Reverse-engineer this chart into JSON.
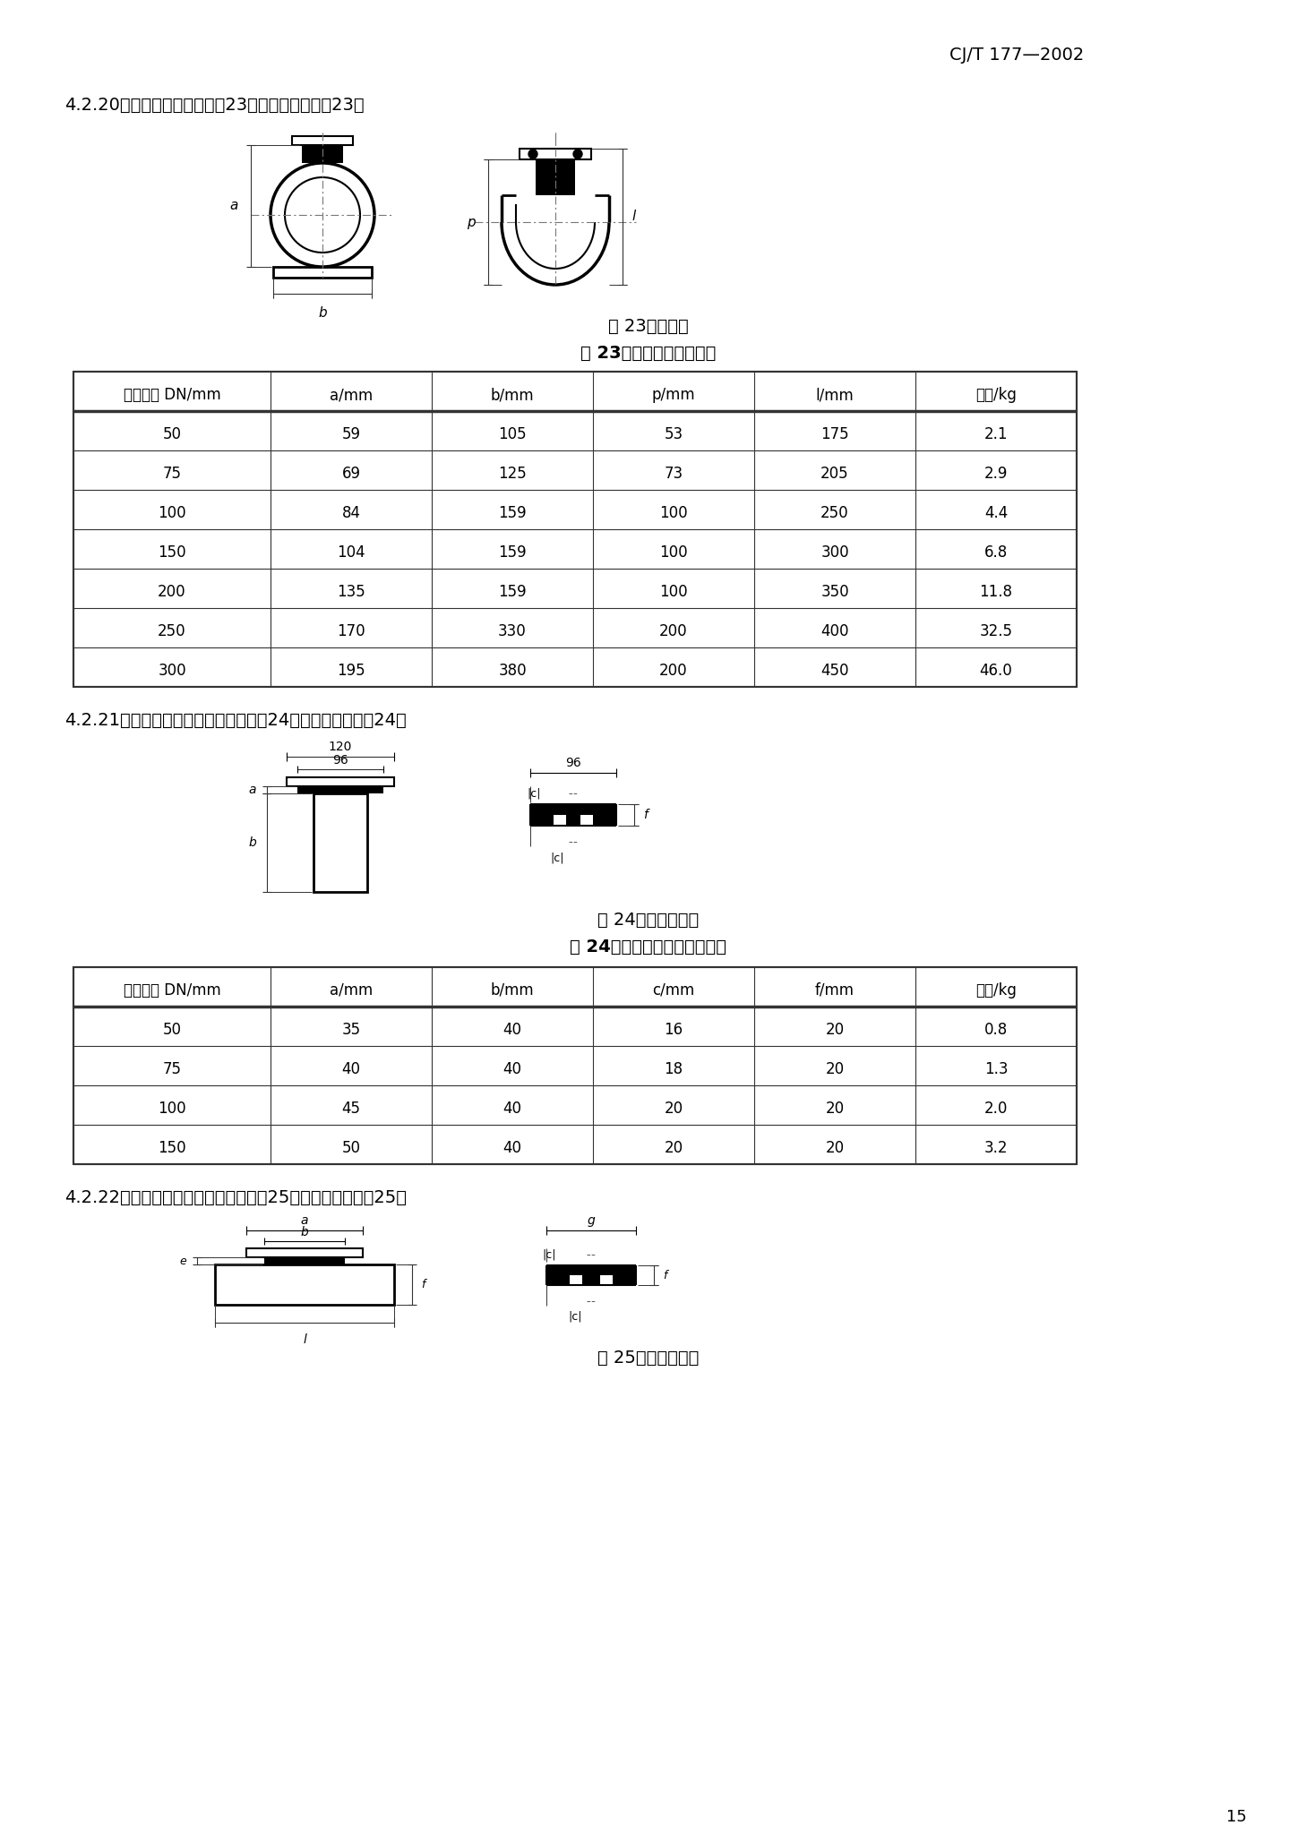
{
  "header": "CJ/T 177—2002",
  "section_420": "4.2.20　检查口；检查口见图23，尺寸和质量见表23。",
  "fig23_caption": "图 23　检查口",
  "table23_title": "表 23　检查口尺寸和质量",
  "table23_headers": [
    "公称直径 DN/mm",
    "a/mm",
    "b/mm",
    "p/mm",
    "l/mm",
    "质量/kg"
  ],
  "table23_data": [
    [
      "50",
      "59",
      "105",
      "53",
      "175",
      "2.1"
    ],
    [
      "75",
      "69",
      "125",
      "73",
      "205",
      "2.9"
    ],
    [
      "100",
      "84",
      "159",
      "100",
      "250",
      "4.4"
    ],
    [
      "150",
      "104",
      "159",
      "100",
      "300",
      "6.8"
    ],
    [
      "200",
      "135",
      "159",
      "100",
      "350",
      "11.8"
    ],
    [
      "250",
      "170",
      "330",
      "200",
      "400",
      "32.5"
    ],
    [
      "300",
      "195",
      "380",
      "200",
      "450",
      "46.0"
    ]
  ],
  "section_421": "4.2.21　直式清扫口；直式清扫口见图24，尺寸和质量见表24。",
  "fig24_caption": "图 24　直式清扫口",
  "table24_title": "表 24　直式清扫口尺寸和质量",
  "table24_headers": [
    "公称直径 DN/mm",
    "a/mm",
    "b/mm",
    "c/mm",
    "f/mm",
    "质量/kg"
  ],
  "table24_data": [
    [
      "50",
      "35",
      "40",
      "16",
      "20",
      "0.8"
    ],
    [
      "75",
      "40",
      "40",
      "18",
      "20",
      "1.3"
    ],
    [
      "100",
      "45",
      "40",
      "20",
      "20",
      "2.0"
    ],
    [
      "150",
      "50",
      "40",
      "20",
      "20",
      "3.2"
    ]
  ],
  "section_422": "4.2.22　横式清扫口；横式清扫口见图25，尺寸和质量见表25。",
  "fig25_caption": "图 25　横式清扫口",
  "page_num": "15",
  "bg_color": "#ffffff"
}
